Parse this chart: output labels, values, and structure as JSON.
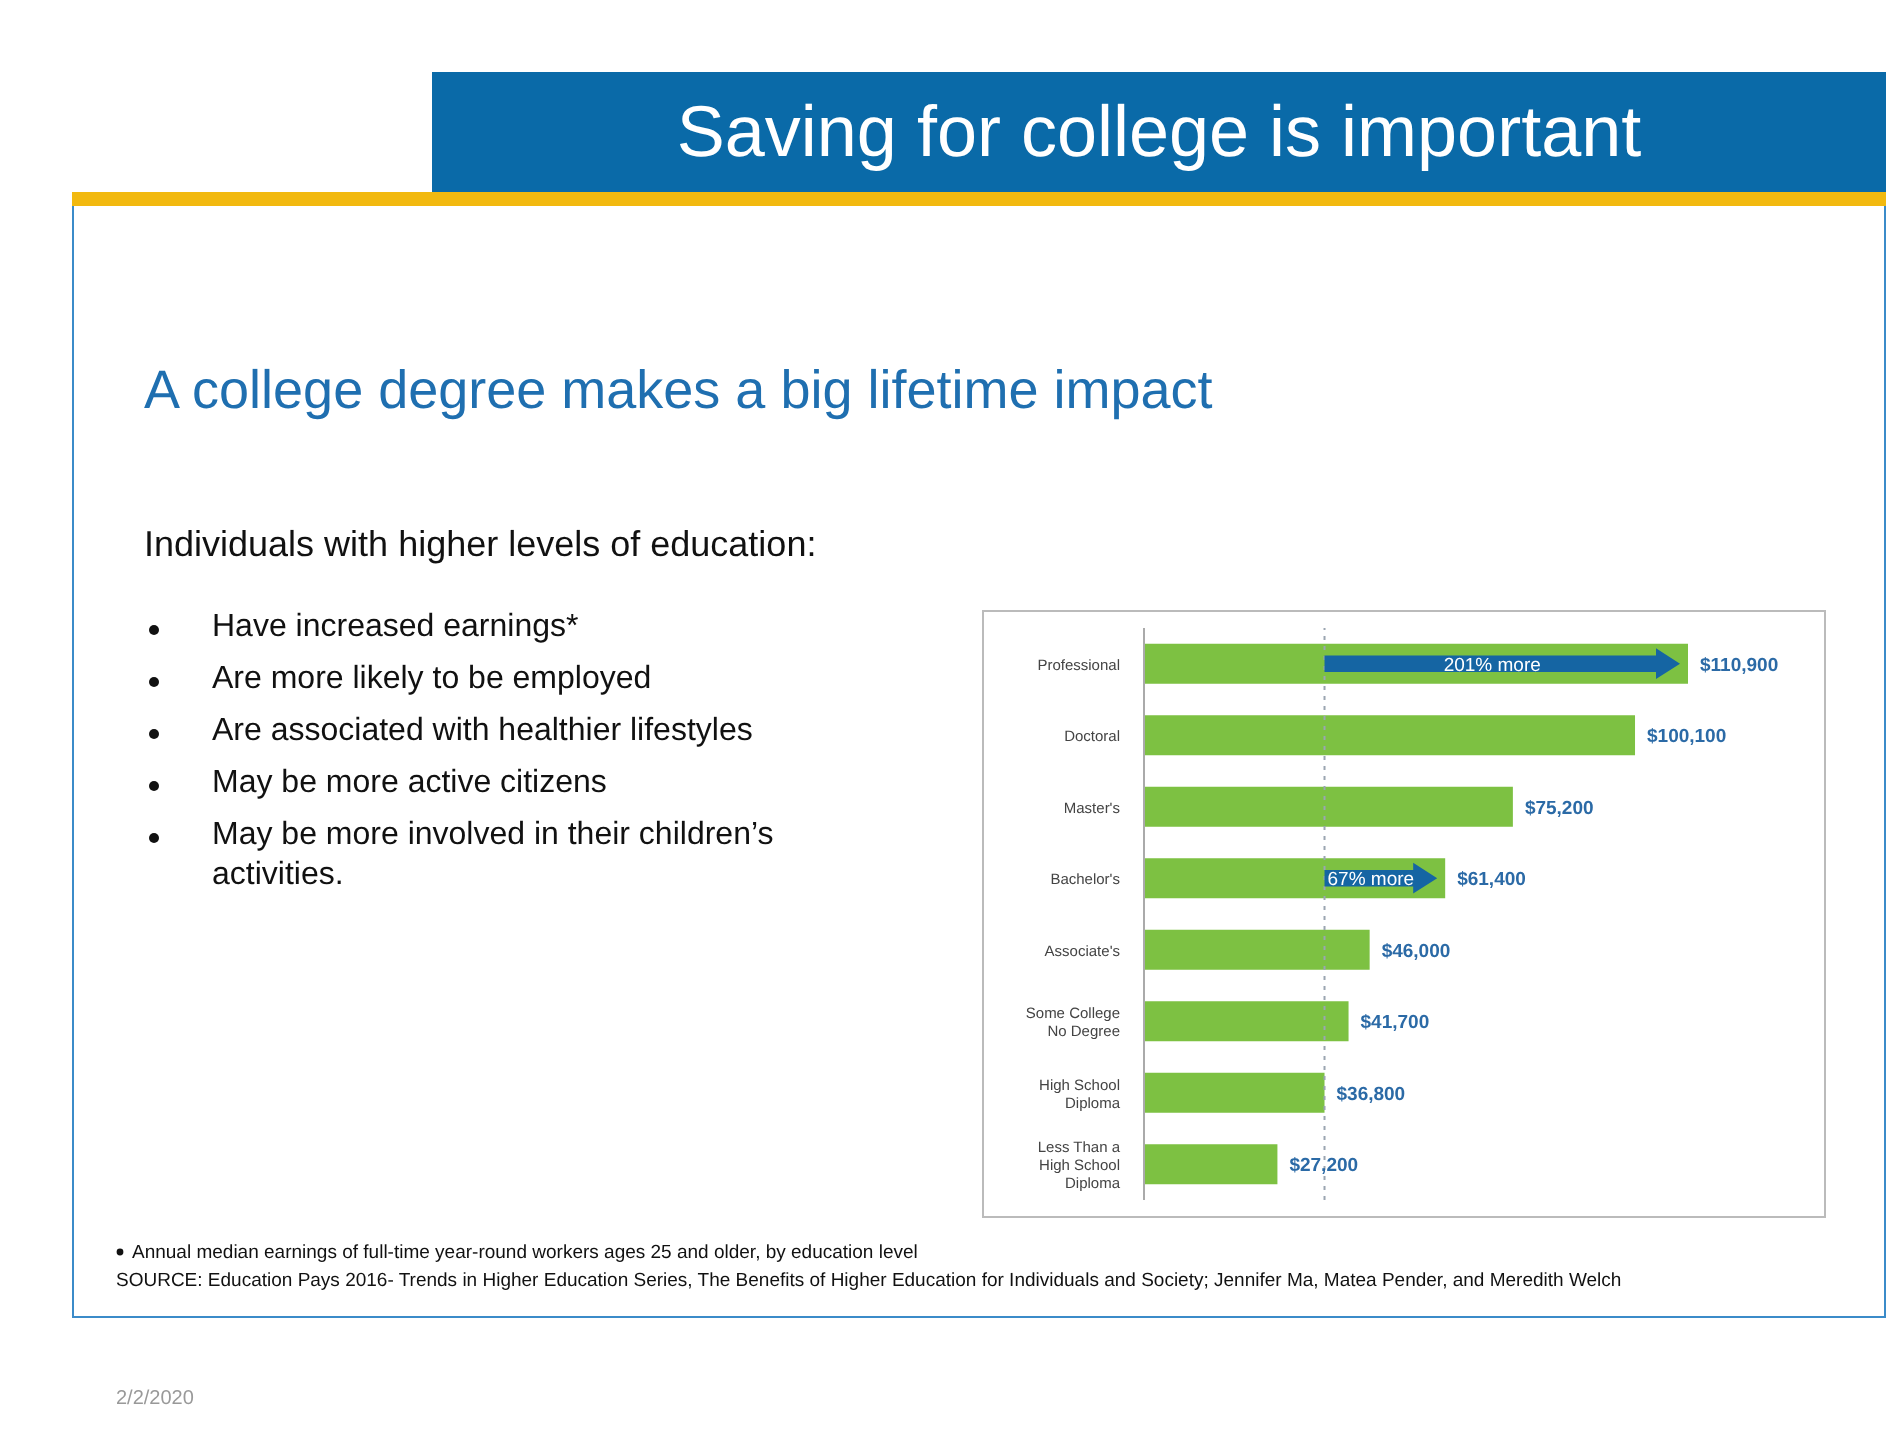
{
  "chart_data": {
    "type": "bar",
    "orientation": "horizontal",
    "title": "Saving for college is important",
    "subtitle": "A college degree makes a big lifetime impact",
    "categories": [
      "Professional",
      "Doctoral",
      "Master's",
      "Bachelor's",
      "Associate's",
      "Some College\nNo Degree",
      "High School\nDiploma",
      "Less Than a\nHigh School\nDiploma"
    ],
    "values": [
      110900,
      100100,
      75200,
      61400,
      46000,
      41700,
      36800,
      27200
    ],
    "value_labels": [
      "$110,900",
      "$100,100",
      "$75,200",
      "$61,400",
      "$46,000",
      "$41,700",
      "$36,800",
      "$27,200"
    ],
    "color": "#7dc142",
    "tick_labels": "y",
    "ref_lines": [
      {
        "axis": "x",
        "value": 36800,
        "line_style": "dotted",
        "color": "#9aa5b1"
      }
    ],
    "annotations": [
      "201% more",
      "67% more",
      "Individuals with higher levels of education:",
      "Have increased earnings*",
      "Are more likely to be employed",
      "Are associated with healthier lifestyles",
      "May be more active citizens",
      "May be more involved in their children’s activities.",
      "Annual median earnings of full-time year-round workers ages 25 and older, by education level",
      "SOURCE: Education Pays 2016- Trends in Higher Education Series, The Benefits of Higher Education for Individuals and Society; Jennifer Ma, Matea Pender, and Meredith Welch",
      "2/2/2020"
    ]
  }
}
